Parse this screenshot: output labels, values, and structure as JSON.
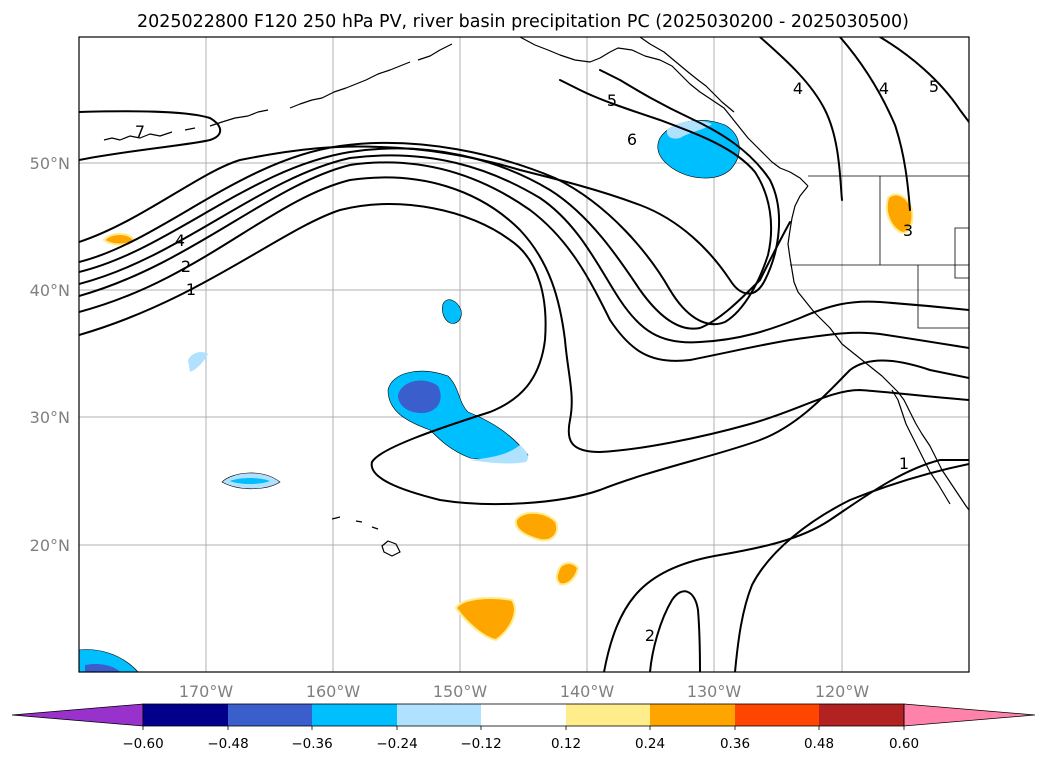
{
  "title": "2025022800 F120 250 hPa PV, river basin precipitation PC (2025030200 - 2025030500)",
  "map": {
    "lon_labels": [
      "170°W",
      "160°W",
      "150°W",
      "140°W",
      "130°W",
      "120°W"
    ],
    "lat_labels": [
      "50°N",
      "40°N",
      "30°N",
      "20°N"
    ],
    "pv_contour_labels": [
      "7",
      "5",
      "4",
      "6",
      "4",
      "5",
      "4",
      "2",
      "1",
      "3",
      "1",
      "2"
    ]
  },
  "colorbar": {
    "ticks": [
      "−0.60",
      "−0.48",
      "−0.36",
      "−0.24",
      "−0.12",
      "0.12",
      "0.24",
      "0.36",
      "0.48",
      "0.60"
    ],
    "colors": [
      "#9932cc",
      "#00008b",
      "#3a5fcd",
      "#00bfff",
      "#b0e2ff",
      "#ffffff",
      "#ffec8b",
      "#ffa500",
      "#ff4500",
      "#b22222",
      "#ff82ab"
    ]
  }
}
